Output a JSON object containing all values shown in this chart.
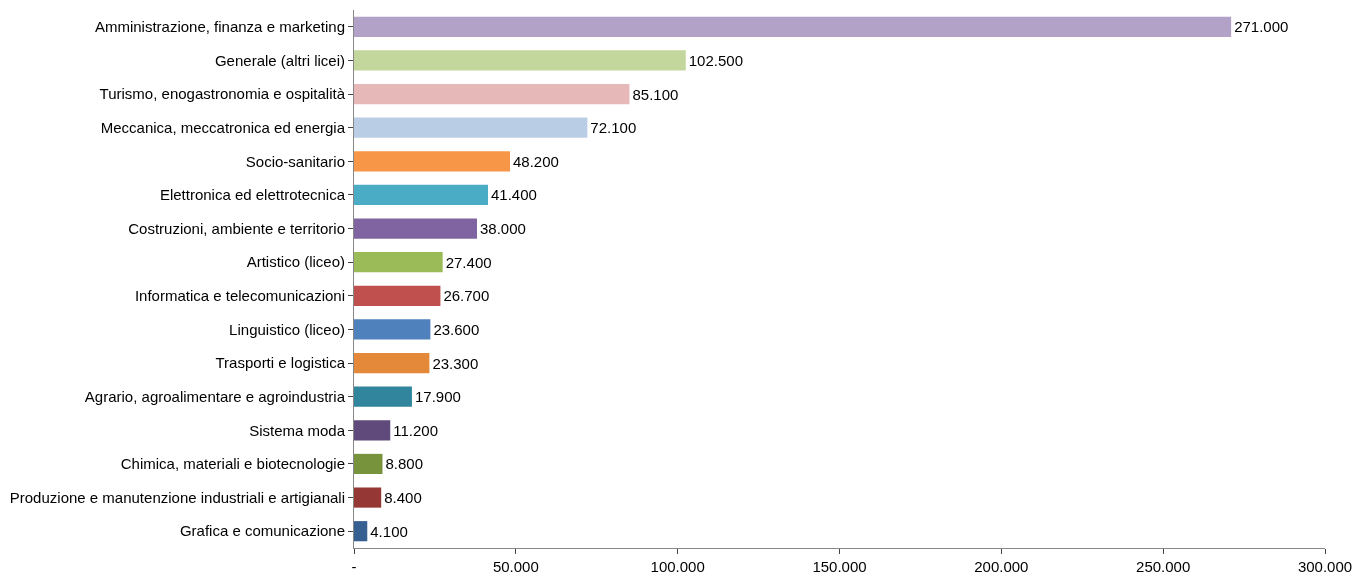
{
  "chart_data": {
    "type": "bar",
    "orientation": "horizontal",
    "categories": [
      "Amministrazione, finanza e marketing",
      "Generale (altri licei)",
      "Turismo, enogastronomia e ospitalità",
      "Meccanica, meccatronica ed energia",
      "Socio-sanitario",
      "Elettronica ed elettrotecnica",
      "Costruzioni, ambiente e territorio",
      "Artistico (liceo)",
      "Informatica e telecomunicazioni",
      "Linguistico (liceo)",
      "Trasporti e logistica",
      "Agrario, agroalimentare e agroindustria",
      "Sistema moda",
      "Chimica, materiali e biotecnologie",
      "Produzione e manutenzione industriali e artigianali",
      "Grafica e comunicazione"
    ],
    "values": [
      271000,
      102500,
      85100,
      72100,
      48200,
      41400,
      38000,
      27400,
      26700,
      23600,
      23300,
      17900,
      11200,
      8800,
      8400,
      4100
    ],
    "value_labels": [
      "271.000",
      "102.500",
      "85.100",
      "72.100",
      "48.200",
      "41.400",
      "38.000",
      "27.400",
      "26.700",
      "23.600",
      "23.300",
      "17.900",
      "11.200",
      "8.800",
      "8.400",
      "4.100"
    ],
    "colors": [
      "#b3a2c7",
      "#c3d69b",
      "#e6b9b8",
      "#b9cde5",
      "#f79646",
      "#4bacc6",
      "#8064a2",
      "#9bbb59",
      "#c0504d",
      "#4f81bd",
      "#e4893a",
      "#31859c",
      "#604a7b",
      "#77933c",
      "#953735",
      "#376092"
    ],
    "xlim": [
      0,
      300000
    ],
    "xticks": [
      {
        "value": 0,
        "label": "-"
      },
      {
        "value": 50000,
        "label": "50.000"
      },
      {
        "value": 100000,
        "label": "100.000"
      },
      {
        "value": 150000,
        "label": "150.000"
      },
      {
        "value": 200000,
        "label": "200.000"
      },
      {
        "value": 250000,
        "label": "250.000"
      },
      {
        "value": 300000,
        "label": "300.000"
      }
    ],
    "grid": false,
    "legend": false
  }
}
